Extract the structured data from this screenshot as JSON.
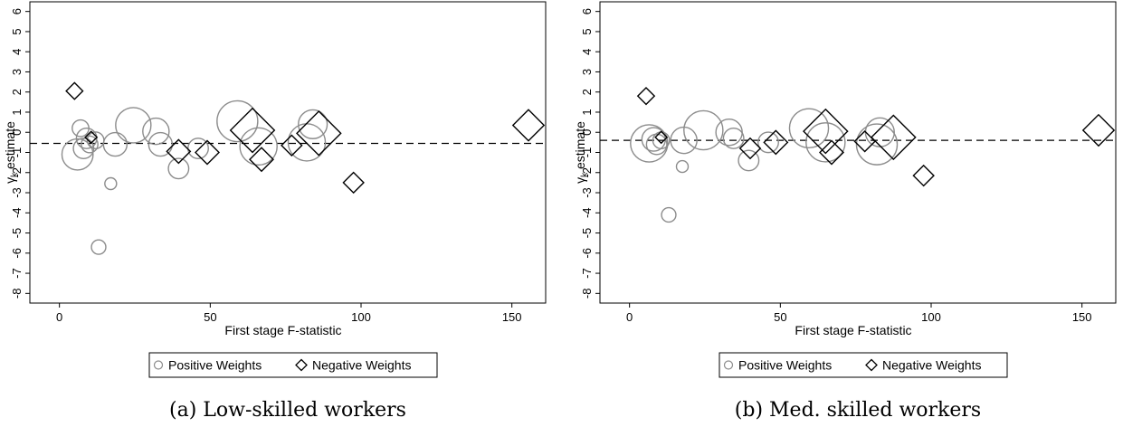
{
  "chart_data": [
    {
      "type": "scatter",
      "xlabel": "First stage F-statistic",
      "ylabel_main": "γ",
      "ylabel_sub": "k",
      "ylabel_rest": " estimate",
      "xlim": [
        -2,
        160
      ],
      "ylim": [
        -8.3,
        6.3
      ],
      "xticks": [
        0,
        50,
        100,
        150
      ],
      "yticks": [
        -8,
        -7,
        -6,
        -5,
        -4,
        -3,
        -2,
        -1,
        0,
        1,
        2,
        3,
        4,
        5,
        6
      ],
      "reference_line_y": -0.55,
      "legend": {
        "positive_label": "Positive Weights",
        "negative_label": "Negative Weights",
        "placement": "bottom"
      },
      "caption": "(a) Low-skilled workers",
      "colors": {
        "positive": "#8c8c8c",
        "negative": "#000000"
      },
      "series": [
        {
          "name": "Positive Weights",
          "marker": "circle",
          "points": [
            {
              "x": 6,
              "y": -1.1,
              "weight": 7
            },
            {
              "x": 7,
              "y": 0.2,
              "weight": 2
            },
            {
              "x": 8,
              "y": -0.8,
              "weight": 3
            },
            {
              "x": 9,
              "y": -0.3,
              "weight": 3
            },
            {
              "x": 10,
              "y": -0.6,
              "weight": 2
            },
            {
              "x": 12,
              "y": -0.4,
              "weight": 2
            },
            {
              "x": 17,
              "y": -2.55,
              "weight": 1
            },
            {
              "x": 13,
              "y": -5.7,
              "weight": 1.5
            },
            {
              "x": 18.5,
              "y": -0.6,
              "weight": 4
            },
            {
              "x": 24.5,
              "y": 0.35,
              "weight": 9
            },
            {
              "x": 32,
              "y": 0.05,
              "weight": 5
            },
            {
              "x": 33.5,
              "y": -0.6,
              "weight": 4
            },
            {
              "x": 39.5,
              "y": -1.8,
              "weight": 3
            },
            {
              "x": 46,
              "y": -0.8,
              "weight": 3
            },
            {
              "x": 59,
              "y": 0.55,
              "weight": 12
            },
            {
              "x": 66,
              "y": -0.7,
              "weight": 10
            },
            {
              "x": 84,
              "y": 0.4,
              "weight": 6
            },
            {
              "x": 82,
              "y": -0.5,
              "weight": 10
            }
          ]
        },
        {
          "name": "Negative Weights",
          "marker": "diamond",
          "points": [
            {
              "x": 5,
              "y": 2.05,
              "weight": 2
            },
            {
              "x": 10.5,
              "y": -0.25,
              "weight": 1
            },
            {
              "x": 39.5,
              "y": -0.95,
              "weight": 4
            },
            {
              "x": 49,
              "y": -1.0,
              "weight": 4
            },
            {
              "x": 64,
              "y": 0.1,
              "weight": 14
            },
            {
              "x": 67,
              "y": -1.35,
              "weight": 4
            },
            {
              "x": 77,
              "y": -0.65,
              "weight": 3
            },
            {
              "x": 86,
              "y": -0.05,
              "weight": 14
            },
            {
              "x": 97.5,
              "y": -2.5,
              "weight": 3
            },
            {
              "x": 155.5,
              "y": 0.35,
              "weight": 7
            }
          ]
        }
      ]
    },
    {
      "type": "scatter",
      "xlabel": "First stage F-statistic",
      "ylabel_main": "γ",
      "ylabel_sub": "k",
      "ylabel_rest": " estimate",
      "xlim": [
        -2,
        160
      ],
      "ylim": [
        -8.3,
        6.3
      ],
      "xticks": [
        0,
        50,
        100,
        150
      ],
      "yticks": [
        -8,
        -7,
        -6,
        -5,
        -4,
        -3,
        -2,
        -1,
        0,
        1,
        2,
        3,
        4,
        5,
        6
      ],
      "reference_line_y": -0.4,
      "legend": {
        "positive_label": "Positive Weights",
        "negative_label": "Negative Weights",
        "placement": "bottom"
      },
      "caption": "(b) Med. skilled workers",
      "colors": {
        "positive": "#8c8c8c",
        "negative": "#000000"
      },
      "series": [
        {
          "name": "Positive Weights",
          "marker": "circle",
          "points": [
            {
              "x": 6.5,
              "y": -0.55,
              "weight": 10
            },
            {
              "x": 8,
              "y": -0.35,
              "weight": 4
            },
            {
              "x": 9,
              "y": -0.6,
              "weight": 3
            },
            {
              "x": 10.5,
              "y": -0.4,
              "weight": 2
            },
            {
              "x": 17.5,
              "y": -1.7,
              "weight": 1
            },
            {
              "x": 13,
              "y": -4.1,
              "weight": 1.5
            },
            {
              "x": 18,
              "y": -0.4,
              "weight": 5
            },
            {
              "x": 24.5,
              "y": 0.1,
              "weight": 11
            },
            {
              "x": 33,
              "y": 0.0,
              "weight": 5
            },
            {
              "x": 34.5,
              "y": -0.3,
              "weight": 3
            },
            {
              "x": 39.5,
              "y": -1.4,
              "weight": 3
            },
            {
              "x": 46,
              "y": -0.5,
              "weight": 3
            },
            {
              "x": 59.5,
              "y": 0.2,
              "weight": 11
            },
            {
              "x": 65,
              "y": -0.5,
              "weight": 11
            },
            {
              "x": 83,
              "y": 0.0,
              "weight": 6
            },
            {
              "x": 82,
              "y": -0.6,
              "weight": 12
            }
          ]
        },
        {
          "name": "Negative Weights",
          "marker": "diamond",
          "points": [
            {
              "x": 5.5,
              "y": 1.8,
              "weight": 2
            },
            {
              "x": 10.5,
              "y": -0.25,
              "weight": 1
            },
            {
              "x": 40,
              "y": -0.8,
              "weight": 3
            },
            {
              "x": 48.5,
              "y": -0.5,
              "weight": 4
            },
            {
              "x": 65,
              "y": 0.05,
              "weight": 14
            },
            {
              "x": 67,
              "y": -1.0,
              "weight": 4
            },
            {
              "x": 78,
              "y": -0.45,
              "weight": 3
            },
            {
              "x": 87.5,
              "y": -0.25,
              "weight": 14
            },
            {
              "x": 97.5,
              "y": -2.15,
              "weight": 3
            },
            {
              "x": 155.5,
              "y": 0.1,
              "weight": 7
            }
          ]
        }
      ]
    }
  ]
}
